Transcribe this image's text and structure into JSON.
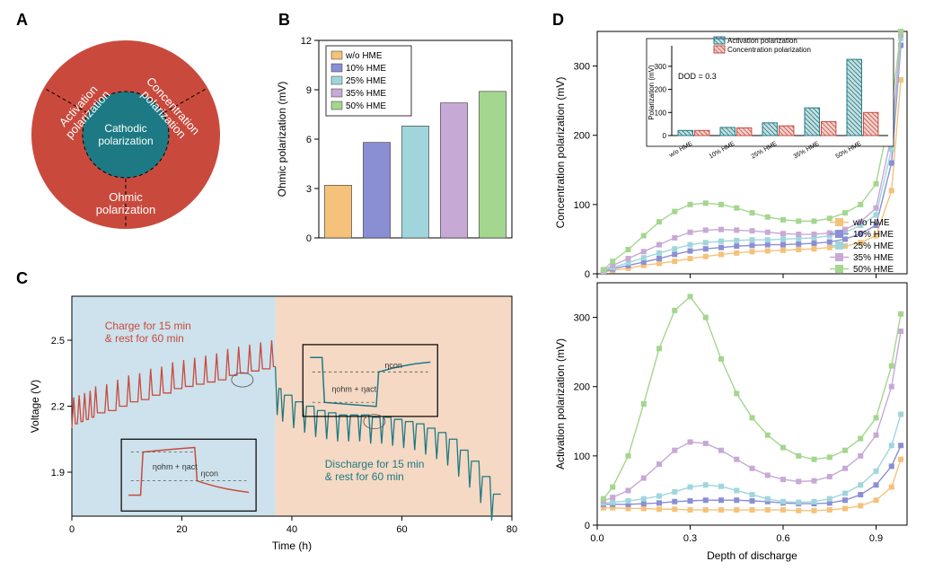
{
  "panelA": {
    "label": "A",
    "outer_color": "#c94a3d",
    "inner_color": "#1d7a84",
    "sector_labels": [
      "Activation polarization",
      "Concentration polarization",
      "Ohmic polarization"
    ],
    "center_label": "Cathodic polarization",
    "text_color": "#ffffff"
  },
  "panelB": {
    "label": "B",
    "type": "bar",
    "title": "",
    "ylabel": "Ohmic polarization (mV)",
    "categories": [
      "w/o HME",
      "10% HME",
      "25% HME",
      "35% HME",
      "50% HME"
    ],
    "values": [
      3.2,
      5.8,
      6.8,
      8.2,
      8.9
    ],
    "bar_colors": [
      "#f4c27a",
      "#8a8fd4",
      "#a0d6db",
      "#c7a9d6",
      "#a4d68f"
    ],
    "ylim": [
      0,
      12
    ],
    "ytick_step": 3,
    "bar_width": 0.7,
    "background_color": "#ffffff",
    "axis_color": "#000000",
    "legend_labels": [
      "w/o HME",
      "10% HME",
      "25% HME",
      "35% HME",
      "50% HME"
    ]
  },
  "panelC": {
    "label": "C",
    "type": "line",
    "xlabel": "Time (h)",
    "ylabel": "Voltage (V)",
    "xlim": [
      0,
      80
    ],
    "xtick_step": 20,
    "ylim": [
      1.7,
      2.7
    ],
    "yticks": [
      1.9,
      2.2,
      2.5
    ],
    "bg_left_color": "#cde2ec",
    "bg_right_color": "#f5d9c4",
    "split_x": 37,
    "charge_color": "#c94a3d",
    "discharge_color": "#1d7a84",
    "charge_annot": "Charge for 15 min\n& rest for 60 min",
    "discharge_annot": "Discharge for 15 min\n& rest for 60 min",
    "eta_ohm_act": "ηohm + ηact",
    "eta_con": "ηcon",
    "charge_series_x": [
      0,
      1,
      2,
      3,
      4,
      6,
      8,
      10,
      12,
      14,
      16,
      18,
      20,
      22,
      24,
      26,
      28,
      30,
      32,
      34,
      36,
      37
    ],
    "charge_series_y": [
      2.1,
      2.12,
      2.13,
      2.14,
      2.15,
      2.17,
      2.18,
      2.2,
      2.22,
      2.23,
      2.25,
      2.26,
      2.28,
      2.29,
      2.3,
      2.31,
      2.32,
      2.34,
      2.35,
      2.36,
      2.37,
      2.38
    ],
    "discharge_series_x": [
      37,
      38,
      40,
      42,
      44,
      46,
      48,
      50,
      52,
      54,
      56,
      58,
      60,
      62,
      64,
      66,
      68,
      70,
      72,
      74,
      76,
      78
    ],
    "discharge_series_y": [
      2.38,
      2.28,
      2.25,
      2.22,
      2.2,
      2.18,
      2.17,
      2.16,
      2.16,
      2.16,
      2.15,
      2.15,
      2.14,
      2.13,
      2.12,
      2.1,
      2.08,
      2.05,
      2.0,
      1.95,
      1.88,
      1.8
    ]
  },
  "panelD": {
    "label": "D",
    "xlabel": "Depth of discharge",
    "xlim": [
      0.0,
      1.0
    ],
    "xtick_step": 0.3,
    "colors": {
      "wo": "#f4c27a",
      "p10": "#8a8fd4",
      "p25": "#a0d6db",
      "p35": "#c7a9d6",
      "p50": "#a4d68f"
    },
    "legend_labels": [
      "w/o HME",
      "10% HME",
      "25% HME",
      "35% HME",
      "50% HME"
    ],
    "conc": {
      "ylabel": "Concentration polarization (mV)",
      "ylim": [
        0,
        350
      ],
      "ytick_step": 100,
      "x": [
        0.02,
        0.05,
        0.1,
        0.15,
        0.2,
        0.25,
        0.3,
        0.35,
        0.4,
        0.45,
        0.5,
        0.55,
        0.6,
        0.65,
        0.7,
        0.75,
        0.8,
        0.85,
        0.9,
        0.95,
        0.98
      ],
      "wo": [
        2,
        5,
        8,
        12,
        15,
        18,
        22,
        25,
        28,
        30,
        32,
        33,
        34,
        35,
        36,
        38,
        40,
        45,
        55,
        120,
        280
      ],
      "p10": [
        3,
        7,
        12,
        17,
        22,
        28,
        33,
        36,
        38,
        40,
        41,
        42,
        42,
        43,
        44,
        46,
        50,
        58,
        70,
        160,
        330
      ],
      "p25": [
        4,
        9,
        16,
        23,
        30,
        36,
        42,
        45,
        47,
        48,
        49,
        49,
        50,
        51,
        52,
        55,
        60,
        70,
        85,
        180,
        340
      ],
      "p35": [
        5,
        12,
        22,
        32,
        42,
        52,
        60,
        63,
        64,
        63,
        62,
        60,
        58,
        57,
        57,
        59,
        64,
        75,
        95,
        200,
        345
      ],
      "p50": [
        6,
        18,
        35,
        55,
        75,
        90,
        100,
        102,
        100,
        95,
        88,
        82,
        78,
        76,
        76,
        80,
        88,
        100,
        130,
        240,
        350
      ]
    },
    "act": {
      "ylabel": "Activation polarization (mV)",
      "ylim": [
        0,
        350
      ],
      "ytick_step": 100,
      "x": [
        0.02,
        0.05,
        0.1,
        0.15,
        0.2,
        0.25,
        0.3,
        0.35,
        0.4,
        0.45,
        0.5,
        0.55,
        0.6,
        0.65,
        0.7,
        0.75,
        0.8,
        0.85,
        0.9,
        0.95,
        0.98
      ],
      "wo": [
        25,
        25,
        24,
        24,
        23,
        23,
        22,
        22,
        22,
        22,
        22,
        22,
        22,
        21,
        21,
        22,
        24,
        28,
        36,
        55,
        95
      ],
      "p10": [
        30,
        30,
        30,
        31,
        32,
        34,
        35,
        36,
        36,
        36,
        35,
        34,
        32,
        31,
        31,
        32,
        36,
        44,
        58,
        85,
        115
      ],
      "p25": [
        32,
        33,
        35,
        38,
        42,
        48,
        55,
        58,
        56,
        50,
        44,
        38,
        34,
        33,
        34,
        38,
        46,
        58,
        78,
        115,
        160
      ],
      "p35": [
        35,
        40,
        50,
        68,
        88,
        108,
        120,
        118,
        108,
        95,
        82,
        72,
        66,
        63,
        64,
        70,
        82,
        100,
        130,
        200,
        280
      ],
      "p50": [
        38,
        55,
        100,
        175,
        255,
        310,
        330,
        300,
        240,
        190,
        155,
        130,
        112,
        100,
        95,
        98,
        108,
        125,
        155,
        230,
        305
      ]
    },
    "inset": {
      "note": "DOD = 0.3",
      "series": [
        "Activation polarization",
        "Concentration polarization"
      ],
      "colors": [
        "#1d7a84",
        "#c94a3d"
      ],
      "categories": [
        "w/o HME",
        "10% HME",
        "25% HME",
        "35% HME",
        "50% HME"
      ],
      "activation": [
        22,
        35,
        55,
        120,
        330
      ],
      "concentration": [
        22,
        33,
        42,
        60,
        100
      ],
      "ylim": [
        0,
        350
      ],
      "ytick_step": 100,
      "ylabel": "Polarization (mV)"
    }
  }
}
